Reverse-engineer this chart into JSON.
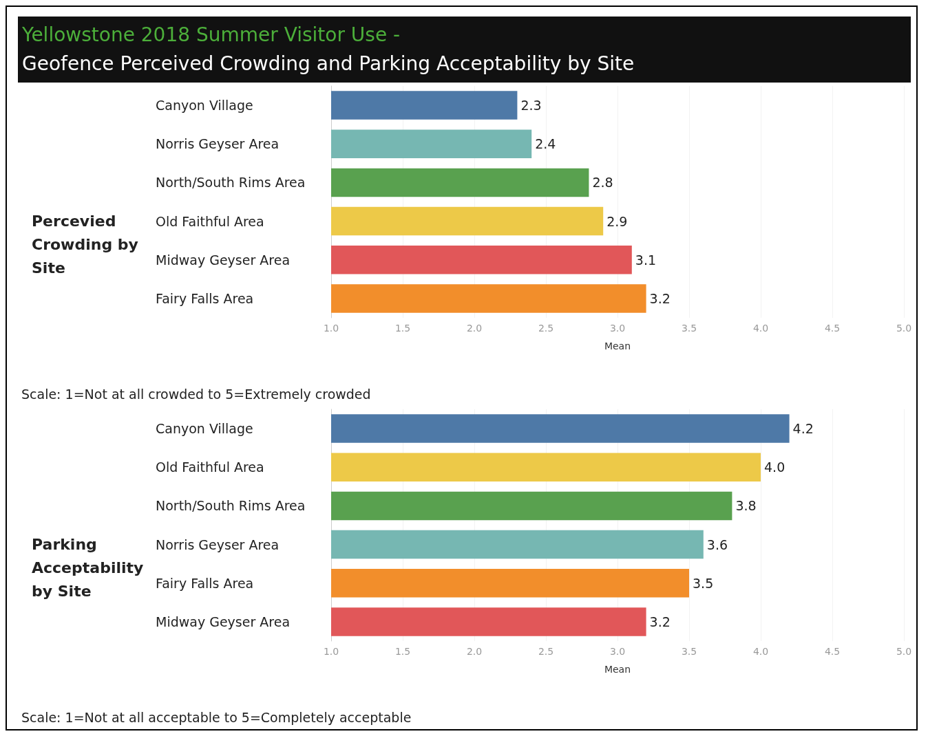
{
  "chart_data": [
    {
      "type": "bar",
      "orientation": "horizontal",
      "title": "Yellowstone 2018 Summer Visitor Use -",
      "subtitle": "Geofence Perceived Crowding and Parking Acceptability by Site",
      "ylabel": "Percevied Crowding by Site",
      "xlabel": "Mean",
      "categories": [
        "Canyon Village",
        "Norris Geyser Area",
        "North/South Rims Area",
        "Old Faithful Area",
        "Midway Geyser Area",
        "Fairy Falls Area"
      ],
      "values": [
        2.3,
        2.4,
        2.8,
        2.9,
        3.1,
        3.2
      ],
      "value_labels": [
        "2.3",
        "2.4",
        "2.8",
        "2.9",
        "3.1",
        "3.2"
      ],
      "colors": [
        "#4e79a7",
        "#76b7b2",
        "#59a14f",
        "#edc948",
        "#e15759",
        "#f28e2b"
      ],
      "xlim": [
        1,
        5
      ],
      "xticks": [
        {
          "value": 1,
          "label": "1.0"
        },
        {
          "value": 1.5,
          "label": "1.5"
        },
        {
          "value": 2,
          "label": "2.0"
        },
        {
          "value": 2.5,
          "label": "2.5"
        },
        {
          "value": 3,
          "label": "3.0"
        },
        {
          "value": 3.5,
          "label": "3.5"
        },
        {
          "value": 4,
          "label": "4.0"
        },
        {
          "value": 4.5,
          "label": "4.5"
        },
        {
          "value": 5,
          "label": "5.0"
        }
      ],
      "grid": "x",
      "annotations": [
        "Scale: 1=Not at all crowded to 5=Extremely crowded"
      ]
    },
    {
      "type": "bar",
      "orientation": "horizontal",
      "ylabel": "Parking Acceptability by Site",
      "xlabel": "Mean",
      "categories": [
        "Canyon Village",
        "Old Faithful Area",
        "North/South Rims Area",
        "Norris Geyser Area",
        "Fairy Falls Area",
        "Midway Geyser Area"
      ],
      "values": [
        4.2,
        4.0,
        3.8,
        3.6,
        3.5,
        3.2
      ],
      "value_labels": [
        "4.2",
        "4.0",
        "3.8",
        "3.6",
        "3.5",
        "3.2"
      ],
      "colors": [
        "#4e79a7",
        "#edc948",
        "#59a14f",
        "#76b7b2",
        "#f28e2b",
        "#e15759"
      ],
      "xlim": [
        1,
        5
      ],
      "xticks": [
        {
          "value": 1,
          "label": "1.0"
        },
        {
          "value": 1.5,
          "label": "1.5"
        },
        {
          "value": 2,
          "label": "2.0"
        },
        {
          "value": 2.5,
          "label": "2.5"
        },
        {
          "value": 3,
          "label": "3.0"
        },
        {
          "value": 3.5,
          "label": "3.5"
        },
        {
          "value": 4,
          "label": "4.0"
        },
        {
          "value": 4.5,
          "label": "4.5"
        },
        {
          "value": 5,
          "label": "5.0"
        }
      ],
      "grid": "x",
      "annotations": [
        "Scale: 1=Not at all acceptable to 5=Completely acceptable"
      ]
    }
  ]
}
